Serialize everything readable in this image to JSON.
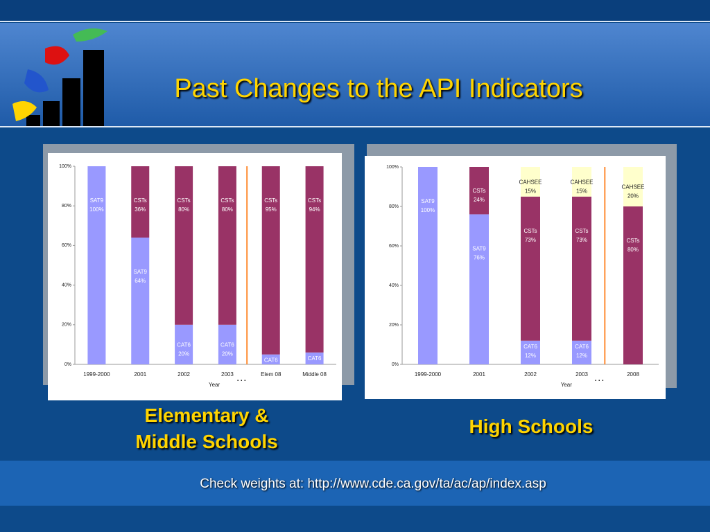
{
  "title": "Past Changes to the API Indicators",
  "footer": "Check weights at:  http://www.cde.ca.gov/ta/ac/ap/index.asp",
  "chart_data": [
    {
      "type": "stacked_bar",
      "caption": "Elementary & Middle Schools",
      "x_label": "Year",
      "break_label": "…",
      "categories": [
        "1999-2000",
        "2001",
        "2002",
        "2003",
        "Elem 08",
        "Middle 08"
      ],
      "ylim": [
        0,
        100
      ],
      "yticks": [
        {
          "value": 0,
          "label": "0%"
        },
        {
          "value": 20,
          "label": "20%"
        },
        {
          "value": 40,
          "label": "40%"
        },
        {
          "value": 60,
          "label": "60%"
        },
        {
          "value": 80,
          "label": "80%"
        },
        {
          "value": 100,
          "label": "100%"
        }
      ],
      "series": [
        {
          "name": "SAT9",
          "color": "#9999ff",
          "values": [
            100,
            64,
            null,
            null,
            null,
            null
          ],
          "value_labels": [
            "100%",
            "64%",
            null,
            null,
            null,
            null
          ]
        },
        {
          "name": "CAT6",
          "color": "#9999ff",
          "values": [
            null,
            null,
            20,
            20,
            5,
            6
          ],
          "value_labels": [
            null,
            null,
            "20%",
            "20%",
            "5%",
            "6%"
          ]
        },
        {
          "name": "CSTs",
          "color": "#993366",
          "values": [
            null,
            36,
            80,
            80,
            95,
            94
          ],
          "value_labels": [
            null,
            "36%",
            "80%",
            "80%",
            "95%",
            "94%"
          ]
        }
      ]
    },
    {
      "type": "stacked_bar",
      "caption": "High Schools",
      "x_label": "Year",
      "break_label": "…",
      "categories": [
        "1999-2000",
        "2001",
        "2002",
        "2003",
        "2008"
      ],
      "ylim": [
        0,
        100
      ],
      "yticks": [
        {
          "value": 0,
          "label": "0%"
        },
        {
          "value": 20,
          "label": "20%"
        },
        {
          "value": 40,
          "label": "40%"
        },
        {
          "value": 60,
          "label": "60%"
        },
        {
          "value": 80,
          "label": "80%"
        },
        {
          "value": 100,
          "label": "100%"
        }
      ],
      "series": [
        {
          "name": "SAT9",
          "color": "#9999ff",
          "values": [
            100,
            76,
            null,
            null,
            null
          ],
          "value_labels": [
            "100%",
            "76%",
            null,
            null,
            null
          ]
        },
        {
          "name": "CAT6",
          "color": "#9999ff",
          "values": [
            null,
            null,
            12,
            12,
            null
          ],
          "value_labels": [
            null,
            null,
            "12%",
            "12%",
            null
          ]
        },
        {
          "name": "CSTs",
          "color": "#993366",
          "values": [
            null,
            24,
            73,
            73,
            80
          ],
          "value_labels": [
            null,
            "24%",
            "73%",
            "73%",
            "80%"
          ]
        },
        {
          "name": "CAHSEE",
          "color": "#ffffcc",
          "values": [
            null,
            null,
            15,
            15,
            20
          ],
          "value_labels": [
            null,
            null,
            "15%",
            "15%",
            "20%"
          ]
        }
      ]
    }
  ]
}
